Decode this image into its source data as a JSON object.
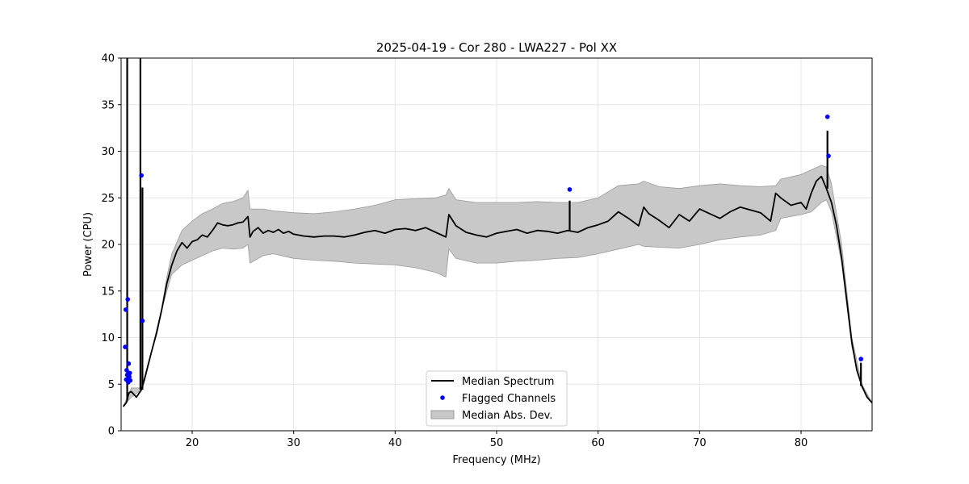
{
  "chart_data": {
    "type": "line",
    "title": "2025-04-19 - Cor 280 - LWA227 - Pol XX",
    "xlabel": "Frequency (MHz)",
    "ylabel": "Power (CPU)",
    "xlim": [
      13,
      87
    ],
    "ylim": [
      0,
      40
    ],
    "xticks": [
      20,
      30,
      40,
      50,
      60,
      70,
      80
    ],
    "yticks": [
      0,
      5,
      10,
      15,
      20,
      25,
      30,
      35,
      40
    ],
    "grid": true,
    "legend_position": "bottom-center",
    "legend": [
      "Median Spectrum",
      "Flagged Channels",
      "Median Abs. Dev."
    ],
    "colors": {
      "median": "#000000",
      "flagged": "#0000ff",
      "mad_fill": "#c8c8c8",
      "mad_edge": "#9a9a9a"
    },
    "series": [
      {
        "name": "Median Spectrum",
        "x": [
          13.2,
          13.5,
          13.6,
          13.7,
          13.8,
          14.0,
          14.5,
          15.0,
          15.3,
          15.6,
          16.0,
          16.5,
          17.0,
          17.5,
          18.0,
          18.5,
          19.0,
          19.5,
          20.0,
          20.5,
          21.0,
          21.5,
          22.0,
          22.5,
          23.0,
          23.5,
          24.0,
          24.5,
          25.0,
          25.5,
          25.7,
          26.0,
          26.5,
          27.0,
          27.5,
          28.0,
          28.5,
          29.0,
          29.5,
          30.0,
          31.0,
          32.0,
          33.0,
          34.0,
          35.0,
          36.0,
          37.0,
          38.0,
          39.0,
          40.0,
          41.0,
          42.0,
          43.0,
          44.0,
          45.0,
          45.3,
          46.0,
          47.0,
          48.0,
          49.0,
          50.0,
          51.0,
          52.0,
          53.0,
          54.0,
          55.0,
          56.0,
          57.0,
          58.0,
          59.0,
          60.0,
          61.0,
          62.0,
          63.0,
          64.0,
          64.5,
          65.0,
          66.0,
          67.0,
          68.0,
          69.0,
          70.0,
          71.0,
          72.0,
          73.0,
          74.0,
          75.0,
          76.0,
          77.0,
          77.5,
          78.0,
          79.0,
          80.0,
          80.5,
          81.0,
          81.5,
          82.0,
          82.5,
          83.0,
          83.5,
          84.0,
          84.5,
          85.0,
          85.5,
          86.0,
          86.5,
          87.0
        ],
        "y": [
          2.6,
          3.0,
          3.3,
          3.8,
          4.1,
          4.2,
          3.6,
          4.4,
          5.5,
          6.8,
          8.5,
          10.5,
          13.0,
          15.8,
          17.8,
          19.3,
          20.2,
          19.6,
          20.3,
          20.5,
          21.0,
          20.8,
          21.5,
          22.3,
          22.1,
          22.0,
          22.1,
          22.3,
          22.4,
          23.0,
          20.8,
          21.4,
          21.8,
          21.2,
          21.5,
          21.3,
          21.6,
          21.2,
          21.4,
          21.1,
          20.9,
          20.8,
          20.9,
          20.9,
          20.8,
          21.0,
          21.3,
          21.5,
          21.2,
          21.6,
          21.7,
          21.5,
          21.8,
          21.3,
          20.8,
          23.2,
          22.0,
          21.3,
          21.0,
          20.8,
          21.2,
          21.4,
          21.6,
          21.2,
          21.5,
          21.4,
          21.2,
          21.5,
          21.3,
          21.8,
          22.1,
          22.5,
          23.5,
          22.8,
          22.0,
          24.0,
          23.3,
          22.6,
          21.8,
          23.2,
          22.5,
          23.8,
          23.3,
          22.8,
          23.5,
          24.0,
          23.7,
          23.4,
          22.5,
          25.5,
          25.0,
          24.2,
          24.5,
          23.8,
          25.5,
          26.8,
          27.3,
          26.0,
          24.5,
          22.0,
          18.5,
          14.0,
          9.5,
          6.5,
          4.8,
          3.6,
          3.0
        ]
      },
      {
        "name": "Median Abs. Dev.",
        "x": [
          13.2,
          14.0,
          15.0,
          16.0,
          17.0,
          17.5,
          18.0,
          19.0,
          20.0,
          21.0,
          22.0,
          23.0,
          24.0,
          25.0,
          25.5,
          25.7,
          27.0,
          28.0,
          30.0,
          32.0,
          34.0,
          36.0,
          38.0,
          40.0,
          42.0,
          44.0,
          45.0,
          45.3,
          46.0,
          48.0,
          50.0,
          52.0,
          54.0,
          56.0,
          58.0,
          60.0,
          62.0,
          64.0,
          64.5,
          66.0,
          68.0,
          70.0,
          72.0,
          74.0,
          76.0,
          77.5,
          78.0,
          80.0,
          81.0,
          82.0,
          82.5,
          83.0,
          84.0,
          85.0,
          86.0,
          87.0
        ],
        "lower": [
          2.6,
          3.6,
          4.4,
          8.5,
          13.0,
          15.0,
          16.8,
          17.8,
          18.3,
          18.8,
          19.3,
          19.6,
          19.5,
          19.6,
          20.0,
          18.0,
          18.8,
          19.0,
          18.5,
          18.3,
          18.2,
          18.0,
          17.9,
          17.8,
          17.5,
          17.0,
          16.5,
          19.5,
          18.5,
          18.0,
          18.0,
          18.2,
          18.3,
          18.5,
          18.6,
          19.0,
          19.5,
          20.0,
          19.8,
          19.7,
          19.6,
          20.0,
          20.5,
          20.8,
          21.0,
          21.5,
          22.8,
          23.2,
          23.5,
          24.5,
          24.8,
          23.5,
          18.0,
          9.0,
          4.6,
          3.0
        ],
        "upper": [
          2.6,
          4.6,
          4.6,
          8.6,
          13.2,
          16.5,
          19.0,
          21.5,
          22.5,
          23.3,
          23.8,
          24.4,
          24.6,
          25.0,
          25.8,
          23.8,
          23.8,
          23.6,
          23.4,
          23.3,
          23.5,
          23.8,
          24.2,
          24.8,
          24.9,
          25.0,
          25.3,
          26.0,
          24.8,
          24.5,
          24.5,
          24.5,
          24.6,
          24.5,
          24.5,
          25.0,
          26.3,
          26.5,
          26.8,
          26.2,
          26.0,
          26.3,
          26.5,
          26.3,
          26.2,
          26.3,
          27.0,
          27.5,
          28.0,
          28.5,
          28.3,
          26.5,
          20.0,
          10.0,
          5.0,
          3.0
        ]
      },
      {
        "name": "Flagged Channels",
        "x": [
          13.4,
          13.45,
          13.5,
          13.55,
          13.6,
          13.65,
          13.7,
          13.75,
          13.8,
          13.85,
          13.9,
          15.0,
          15.1,
          57.2,
          82.6,
          82.7,
          85.9
        ],
        "y": [
          9.0,
          13.0,
          5.5,
          6.5,
          6.0,
          14.1,
          5.2,
          7.2,
          5.8,
          6.2,
          5.4,
          27.4,
          11.8,
          25.9,
          33.7,
          29.5,
          7.7
        ]
      }
    ],
    "spikes": [
      {
        "x": 13.6,
        "y": 40.0
      },
      {
        "x": 14.9,
        "y": 40.0
      },
      {
        "x": 15.1,
        "y": 26.1
      },
      {
        "x": 57.2,
        "y": 24.7
      },
      {
        "x": 82.6,
        "y": 32.2
      },
      {
        "x": 85.9,
        "y": 7.3
      }
    ]
  }
}
